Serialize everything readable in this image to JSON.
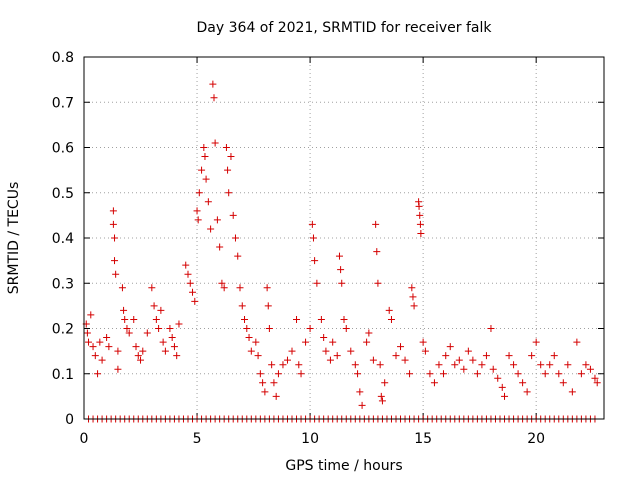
{
  "chart_data": {
    "type": "scatter",
    "title": "Day 364 of 2021, SRMTID for receiver falk",
    "xlabel": "GPS time / hours",
    "ylabel": "SRMTID / TECUs",
    "xlim": [
      0,
      23
    ],
    "ylim": [
      0,
      0.8
    ],
    "xticks": [
      0,
      5,
      10,
      15,
      20
    ],
    "xtick_labels": [
      "0",
      "5",
      "10",
      "15",
      "20"
    ],
    "yticks": [
      0,
      0.1,
      0.2,
      0.3,
      0.4,
      0.5,
      0.6,
      0.7,
      0.8
    ],
    "ytick_labels": [
      "0",
      "0.1",
      "0.2",
      "0.3",
      "0.4",
      "0.5",
      "0.6",
      "0.7",
      "0.8"
    ],
    "grid": true,
    "color": "#d40000",
    "marker": "plus",
    "series": [
      {
        "name": "SRMTID",
        "points": [
          [
            0.1,
            0.21
          ],
          [
            0.15,
            0.19
          ],
          [
            0.2,
            0.17
          ],
          [
            0.3,
            0.23
          ],
          [
            0.4,
            0.16
          ],
          [
            0.5,
            0.14
          ],
          [
            0.6,
            0.1
          ],
          [
            0.7,
            0.17
          ],
          [
            0.8,
            0.13
          ],
          [
            1.0,
            0.18
          ],
          [
            1.1,
            0.16
          ],
          [
            1.3,
            0.46
          ],
          [
            1.3,
            0.43
          ],
          [
            1.35,
            0.4
          ],
          [
            1.35,
            0.35
          ],
          [
            1.4,
            0.32
          ],
          [
            1.5,
            0.15
          ],
          [
            1.5,
            0.11
          ],
          [
            1.7,
            0.29
          ],
          [
            1.75,
            0.24
          ],
          [
            1.8,
            0.22
          ],
          [
            1.9,
            0.2
          ],
          [
            2.0,
            0.19
          ],
          [
            2.2,
            0.22
          ],
          [
            2.3,
            0.16
          ],
          [
            2.4,
            0.14
          ],
          [
            2.5,
            0.13
          ],
          [
            2.6,
            0.15
          ],
          [
            2.8,
            0.19
          ],
          [
            3.0,
            0.29
          ],
          [
            3.1,
            0.25
          ],
          [
            3.2,
            0.22
          ],
          [
            3.3,
            0.2
          ],
          [
            3.4,
            0.24
          ],
          [
            3.5,
            0.17
          ],
          [
            3.6,
            0.15
          ],
          [
            3.8,
            0.2
          ],
          [
            3.9,
            0.18
          ],
          [
            4.0,
            0.16
          ],
          [
            4.1,
            0.14
          ],
          [
            4.2,
            0.21
          ],
          [
            4.5,
            0.34
          ],
          [
            4.6,
            0.32
          ],
          [
            4.7,
            0.3
          ],
          [
            4.8,
            0.28
          ],
          [
            4.9,
            0.26
          ],
          [
            5.0,
            0.46
          ],
          [
            5.05,
            0.44
          ],
          [
            5.1,
            0.5
          ],
          [
            5.2,
            0.55
          ],
          [
            5.3,
            0.6
          ],
          [
            5.35,
            0.58
          ],
          [
            5.4,
            0.53
          ],
          [
            5.5,
            0.48
          ],
          [
            5.6,
            0.42
          ],
          [
            5.7,
            0.74
          ],
          [
            5.75,
            0.71
          ],
          [
            5.8,
            0.61
          ],
          [
            5.9,
            0.44
          ],
          [
            6.0,
            0.38
          ],
          [
            6.1,
            0.3
          ],
          [
            6.2,
            0.29
          ],
          [
            6.3,
            0.6
          ],
          [
            6.35,
            0.55
          ],
          [
            6.4,
            0.5
          ],
          [
            6.5,
            0.58
          ],
          [
            6.6,
            0.45
          ],
          [
            6.7,
            0.4
          ],
          [
            6.8,
            0.36
          ],
          [
            6.9,
            0.29
          ],
          [
            7.0,
            0.25
          ],
          [
            7.1,
            0.22
          ],
          [
            7.2,
            0.2
          ],
          [
            7.3,
            0.18
          ],
          [
            7.4,
            0.15
          ],
          [
            7.6,
            0.17
          ],
          [
            7.7,
            0.14
          ],
          [
            7.8,
            0.1
          ],
          [
            7.9,
            0.08
          ],
          [
            8.0,
            0.06
          ],
          [
            8.1,
            0.29
          ],
          [
            8.15,
            0.25
          ],
          [
            8.2,
            0.2
          ],
          [
            8.3,
            0.12
          ],
          [
            8.4,
            0.08
          ],
          [
            8.5,
            0.05
          ],
          [
            8.6,
            0.1
          ],
          [
            8.8,
            0.12
          ],
          [
            9.0,
            0.13
          ],
          [
            9.2,
            0.15
          ],
          [
            9.4,
            0.22
          ],
          [
            9.5,
            0.12
          ],
          [
            9.6,
            0.1
          ],
          [
            9.8,
            0.17
          ],
          [
            10.0,
            0.2
          ],
          [
            10.1,
            0.43
          ],
          [
            10.15,
            0.4
          ],
          [
            10.2,
            0.35
          ],
          [
            10.3,
            0.3
          ],
          [
            10.5,
            0.22
          ],
          [
            10.6,
            0.18
          ],
          [
            10.7,
            0.15
          ],
          [
            10.9,
            0.13
          ],
          [
            11.0,
            0.17
          ],
          [
            11.2,
            0.14
          ],
          [
            11.3,
            0.36
          ],
          [
            11.35,
            0.33
          ],
          [
            11.4,
            0.3
          ],
          [
            11.5,
            0.22
          ],
          [
            11.6,
            0.2
          ],
          [
            11.8,
            0.15
          ],
          [
            12.0,
            0.12
          ],
          [
            12.1,
            0.1
          ],
          [
            12.2,
            0.06
          ],
          [
            12.3,
            0.03
          ],
          [
            12.5,
            0.17
          ],
          [
            12.6,
            0.19
          ],
          [
            12.8,
            0.13
          ],
          [
            12.9,
            0.43
          ],
          [
            12.95,
            0.37
          ],
          [
            13.0,
            0.3
          ],
          [
            13.1,
            0.12
          ],
          [
            13.15,
            0.05
          ],
          [
            13.2,
            0.04
          ],
          [
            13.3,
            0.08
          ],
          [
            13.5,
            0.24
          ],
          [
            13.6,
            0.22
          ],
          [
            13.8,
            0.14
          ],
          [
            14.0,
            0.16
          ],
          [
            14.2,
            0.13
          ],
          [
            14.4,
            0.1
          ],
          [
            14.5,
            0.29
          ],
          [
            14.55,
            0.27
          ],
          [
            14.6,
            0.25
          ],
          [
            14.8,
            0.48
          ],
          [
            14.82,
            0.47
          ],
          [
            14.85,
            0.45
          ],
          [
            14.88,
            0.43
          ],
          [
            14.9,
            0.41
          ],
          [
            15.0,
            0.17
          ],
          [
            15.1,
            0.15
          ],
          [
            15.3,
            0.1
          ],
          [
            15.5,
            0.08
          ],
          [
            15.7,
            0.12
          ],
          [
            15.9,
            0.1
          ],
          [
            16.0,
            0.14
          ],
          [
            16.2,
            0.16
          ],
          [
            16.4,
            0.12
          ],
          [
            16.6,
            0.13
          ],
          [
            16.8,
            0.11
          ],
          [
            17.0,
            0.15
          ],
          [
            17.2,
            0.13
          ],
          [
            17.4,
            0.1
          ],
          [
            17.6,
            0.12
          ],
          [
            17.8,
            0.14
          ],
          [
            18.0,
            0.2
          ],
          [
            18.1,
            0.11
          ],
          [
            18.3,
            0.09
          ],
          [
            18.5,
            0.07
          ],
          [
            18.6,
            0.05
          ],
          [
            18.8,
            0.14
          ],
          [
            19.0,
            0.12
          ],
          [
            19.2,
            0.1
          ],
          [
            19.4,
            0.08
          ],
          [
            19.6,
            0.06
          ],
          [
            19.8,
            0.14
          ],
          [
            20.0,
            0.17
          ],
          [
            20.2,
            0.12
          ],
          [
            20.4,
            0.1
          ],
          [
            20.6,
            0.12
          ],
          [
            20.8,
            0.14
          ],
          [
            21.0,
            0.1
          ],
          [
            21.2,
            0.08
          ],
          [
            21.4,
            0.12
          ],
          [
            21.6,
            0.06
          ],
          [
            21.8,
            0.17
          ],
          [
            22.0,
            0.1
          ],
          [
            22.2,
            0.12
          ],
          [
            22.4,
            0.11
          ],
          [
            22.6,
            0.09
          ],
          [
            22.7,
            0.08
          ]
        ],
        "zero_points_x": [
          0.2,
          0.4,
          0.6,
          0.8,
          1.0,
          1.2,
          1.4,
          1.6,
          1.8,
          2.0,
          2.2,
          2.4,
          2.6,
          2.8,
          3.0,
          3.2,
          3.4,
          3.6,
          3.8,
          4.0,
          4.2,
          4.4,
          4.6,
          4.8,
          5.0,
          5.2,
          5.4,
          5.6,
          5.8,
          6.0,
          6.2,
          6.4,
          6.6,
          6.8,
          7.0,
          7.2,
          7.4,
          7.6,
          7.8,
          8.0,
          8.2,
          8.4,
          8.6,
          8.8,
          9.0,
          9.2,
          9.4,
          9.6,
          9.8,
          10.0,
          10.2,
          10.4,
          10.6,
          10.8,
          11.0,
          11.2,
          11.4,
          11.6,
          11.8,
          12.0,
          12.2,
          12.4,
          12.6,
          12.8,
          13.0,
          13.2,
          13.4,
          13.6,
          13.8,
          14.0,
          14.2,
          14.4,
          14.6,
          14.8,
          15.0,
          15.2,
          15.4,
          15.6,
          15.8,
          16.0,
          16.2,
          16.4,
          16.6,
          16.8,
          17.0,
          17.2,
          17.4,
          17.6,
          17.8,
          18.0,
          18.2,
          18.4,
          18.6,
          18.8,
          19.0,
          19.2,
          19.4,
          19.6,
          19.8,
          20.0,
          20.2,
          20.4,
          20.6,
          20.8,
          21.0,
          21.2,
          21.4,
          21.6,
          21.8,
          22.0,
          22.2,
          22.4,
          22.6
        ]
      }
    ]
  }
}
